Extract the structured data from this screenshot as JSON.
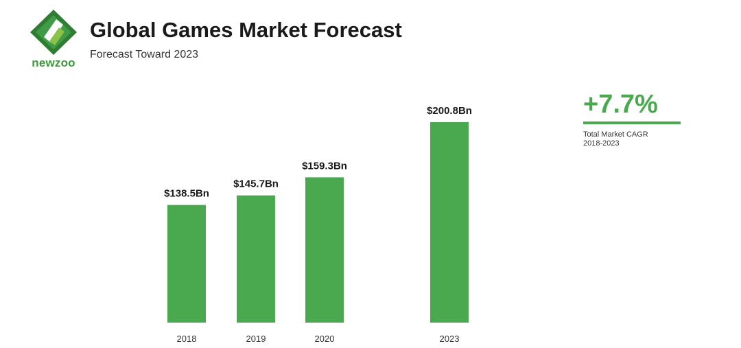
{
  "header": {
    "title": "Global Games Market Forecast",
    "subtitle": "Forecast Toward 2023"
  },
  "logo": {
    "icon": "newzoo-logo-icon",
    "text": "newzoo"
  },
  "cagr": {
    "value": "+7.7%",
    "label_line1": "Total Market CAGR",
    "label_line2": "2018-2023"
  },
  "colors": {
    "bar": "#4aa84f",
    "accent": "#4aa84f",
    "logo_dark": "#2e7d32",
    "logo_light": "#8bc34a"
  },
  "chart_data": {
    "type": "bar",
    "categories": [
      "2018",
      "2019",
      "2020",
      "2023"
    ],
    "values": [
      138.5,
      145.7,
      159.3,
      200.8
    ],
    "data_labels": [
      "$138.5Bn",
      "$145.7Bn",
      "$159.3Bn",
      "$200.8Bn"
    ],
    "unit": "Bn",
    "title": "Global Games Market Forecast",
    "subtitle": "Forecast Toward 2023",
    "xlabel": "",
    "ylabel": "",
    "ylim": [
      50,
      210
    ],
    "grid": false,
    "legend": "none"
  }
}
